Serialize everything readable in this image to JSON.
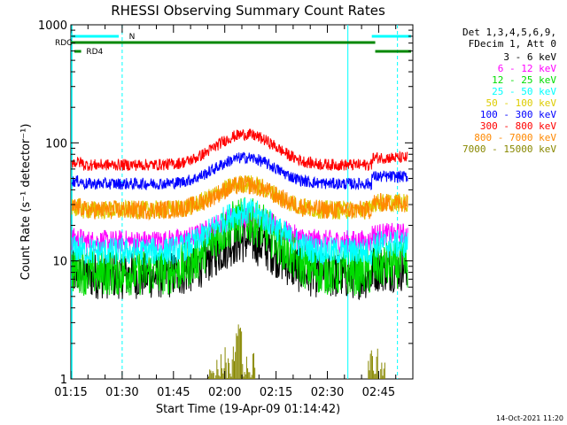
{
  "chart_data": {
    "type": "line",
    "title": "RHESSI Observing Summary Count Rates",
    "xlabel": "Start Time (19-Apr-09 01:14:42)",
    "ylabel": "Count Rate (s⁻¹ detector⁻¹)",
    "x_range_minutes": [
      0,
      100
    ],
    "x_ticks": [
      {
        "label": "01:15",
        "minute": 0
      },
      {
        "label": "01:30",
        "minute": 15
      },
      {
        "label": "01:45",
        "minute": 30
      },
      {
        "label": "02:00",
        "minute": 45
      },
      {
        "label": "02:15",
        "minute": 60
      },
      {
        "label": "02:30",
        "minute": 75
      },
      {
        "label": "02:45",
        "minute": 90
      }
    ],
    "y_scale": "log",
    "ylim": [
      1,
      1000
    ],
    "y_ticks": [
      {
        "label": "1",
        "value": 1
      },
      {
        "label": "10",
        "value": 10
      },
      {
        "label": "100",
        "value": 100
      },
      {
        "label": "1000",
        "value": 1000
      }
    ],
    "legend_header": [
      "Det 1,3,4,5,6,9,",
      "FDecim 1, Att 0"
    ],
    "legend_position": "top-right",
    "series": [
      {
        "name": "3 - 6 keV",
        "color": "#000000",
        "base": 7.5,
        "peak": 15,
        "noise": 0.1
      },
      {
        "name": "6 - 12 keV",
        "color": "#ff00ff",
        "base": 14.5,
        "peak": 24,
        "noise": 0.05
      },
      {
        "name": "12 - 25 keV",
        "color": "#00dd00",
        "base": 8,
        "peak": 22,
        "noise": 0.1
      },
      {
        "name": "25 - 50 keV",
        "color": "#00ffff",
        "base": 12,
        "peak": 26,
        "noise": 0.06
      },
      {
        "name": "50 - 100 keV",
        "color": "#ddcc00",
        "base": 27,
        "peak": 45,
        "noise": 0.04
      },
      {
        "name": "100 - 300 keV",
        "color": "#0000ff",
        "base": 45,
        "peak": 75,
        "noise": 0.025
      },
      {
        "name": "300 - 800 keV",
        "color": "#ff0000",
        "base": 65,
        "peak": 118,
        "noise": 0.025
      },
      {
        "name": "800 - 7000 keV",
        "color": "#ff8800",
        "base": 27,
        "peak": 44,
        "noise": 0.04
      },
      {
        "name": "7000 - 15000 keV",
        "color": "#888800",
        "base": 1,
        "peak": 3,
        "noise": 0
      }
    ],
    "annotations": {
      "flags": [
        {
          "label": "N",
          "color": "#00ffff"
        },
        {
          "label": "RDC",
          "color": "#008800"
        },
        {
          "label": "RD4",
          "color": "#008800"
        }
      ],
      "vertical_markers_minutes": [
        15,
        81,
        95.5
      ]
    },
    "footer_date": "14-Oct-2021 11:20"
  }
}
